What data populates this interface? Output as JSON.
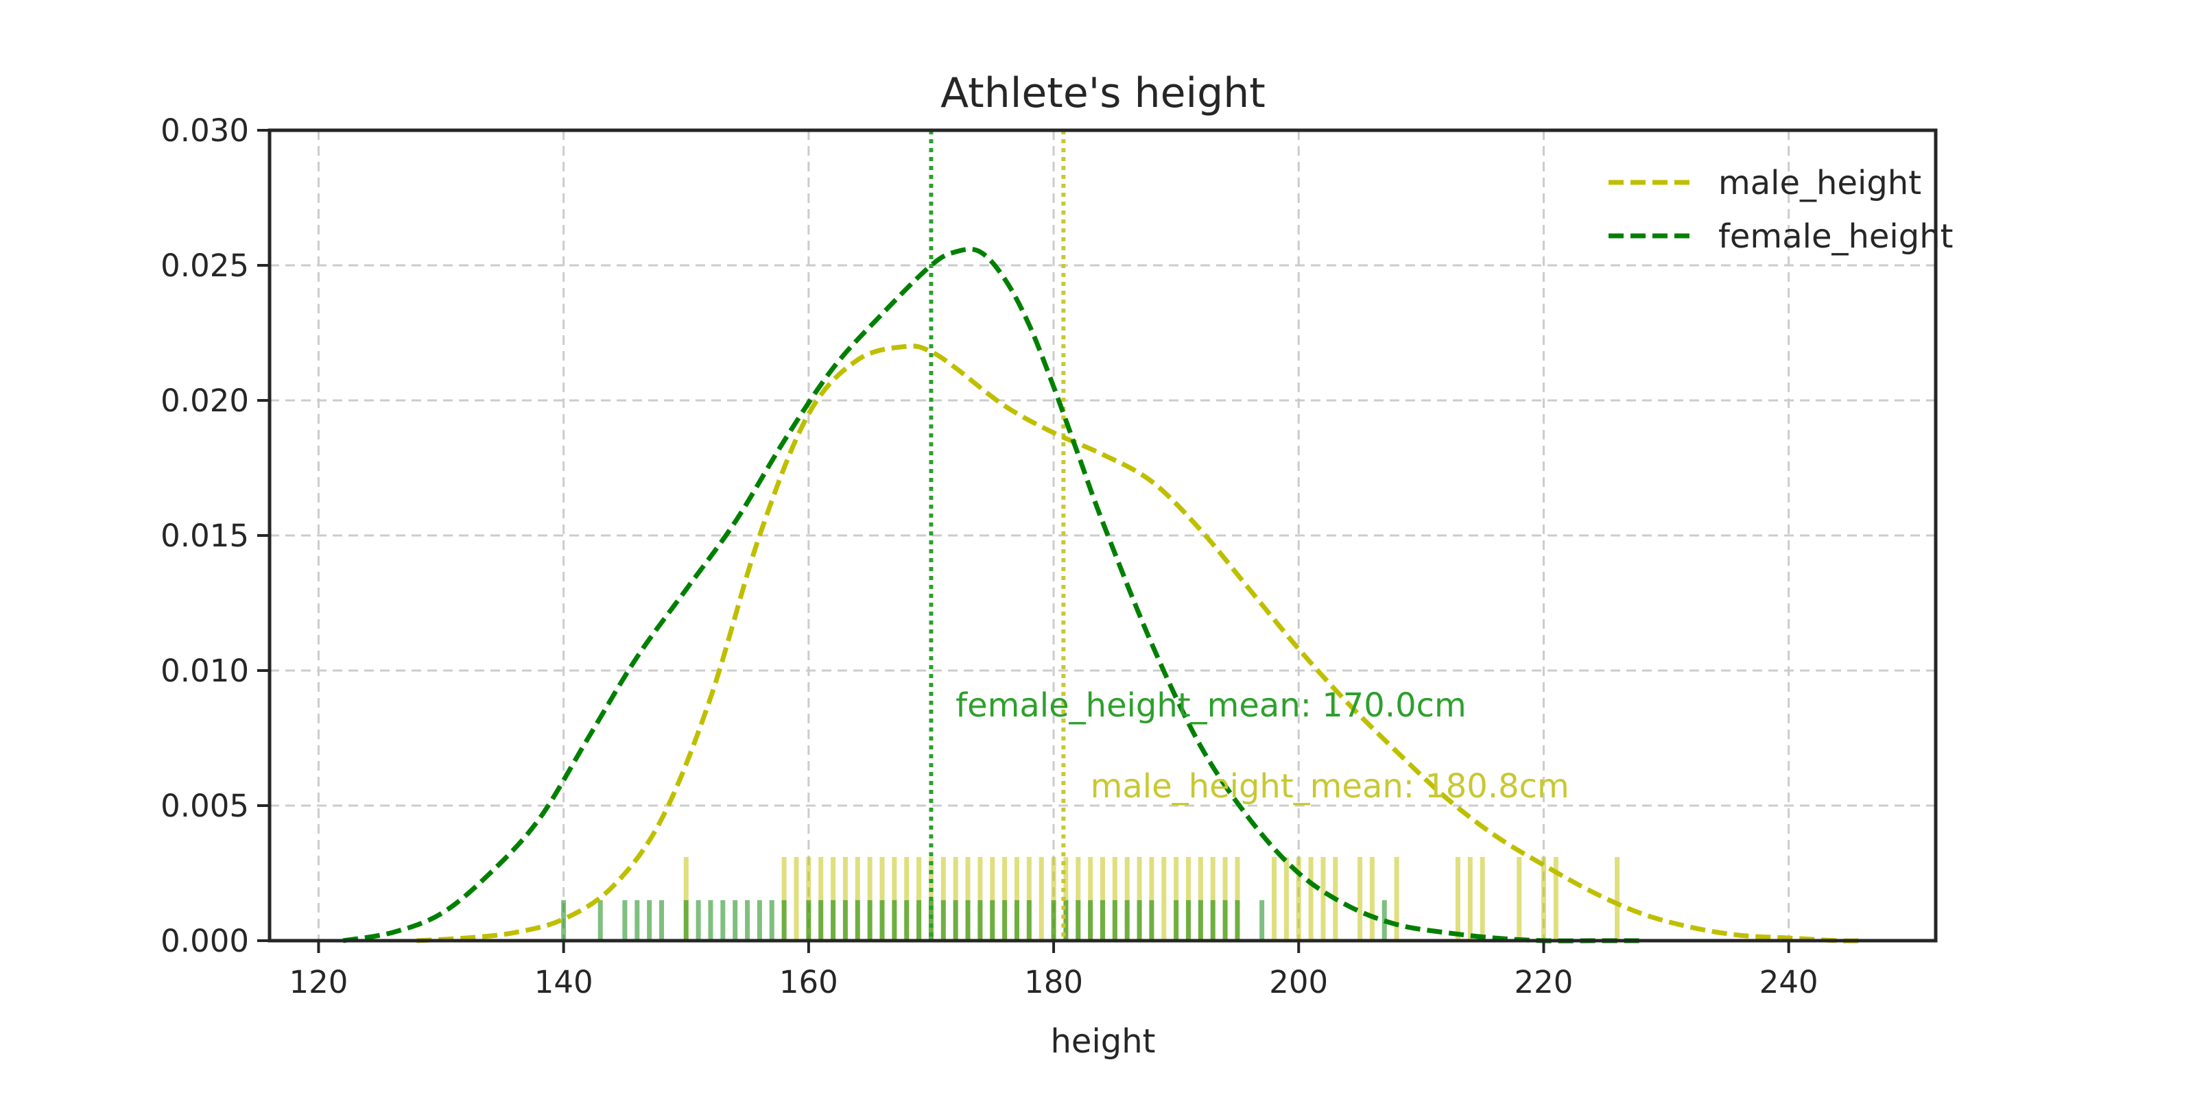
{
  "chart_data": {
    "type": "line",
    "title": "Athlete's height",
    "xlabel": "height",
    "ylabel": "",
    "xlim": [
      116,
      252
    ],
    "ylim": [
      0,
      0.03
    ],
    "x_ticks": [
      120,
      140,
      160,
      180,
      200,
      220,
      240
    ],
    "y_ticks": [
      0.0,
      0.005,
      0.01,
      0.015,
      0.02,
      0.025,
      0.03
    ],
    "y_tick_labels": [
      "0.000",
      "0.005",
      "0.010",
      "0.015",
      "0.020",
      "0.025",
      "0.030"
    ],
    "grid": true,
    "legend_position": "top-right",
    "series": [
      {
        "name": "male_height",
        "color": "#bfbf00",
        "style": "dashed",
        "x": [
          128,
          132,
          136,
          140,
          144,
          148,
          152,
          156,
          160,
          164,
          168,
          170,
          172,
          176,
          180,
          184,
          188,
          192,
          196,
          200,
          204,
          208,
          212,
          216,
          220,
          224,
          228,
          232,
          236,
          240,
          244,
          246
        ],
        "y": [
          0.0,
          0.0001,
          0.0003,
          0.0008,
          0.002,
          0.0045,
          0.009,
          0.015,
          0.0195,
          0.0215,
          0.022,
          0.0218,
          0.0212,
          0.0198,
          0.0188,
          0.018,
          0.017,
          0.0152,
          0.013,
          0.0108,
          0.0088,
          0.007,
          0.0053,
          0.0039,
          0.0028,
          0.0018,
          0.001,
          0.0005,
          0.0002,
          0.0001,
          0.0,
          0.0
        ]
      },
      {
        "name": "female_height",
        "color": "#008000",
        "style": "dashed",
        "x": [
          122,
          126,
          130,
          134,
          138,
          142,
          146,
          150,
          154,
          158,
          162,
          166,
          170,
          172,
          174,
          176,
          178,
          180,
          182,
          184,
          188,
          192,
          196,
          200,
          204,
          208,
          212,
          216,
          220,
          224,
          228
        ],
        "y": [
          0.0,
          0.0003,
          0.001,
          0.0025,
          0.0045,
          0.0075,
          0.0105,
          0.013,
          0.0155,
          0.0185,
          0.0212,
          0.0232,
          0.025,
          0.0255,
          0.0255,
          0.0245,
          0.0228,
          0.0205,
          0.018,
          0.0155,
          0.011,
          0.0072,
          0.0045,
          0.0025,
          0.0013,
          0.0006,
          0.0003,
          0.0001,
          0.0,
          0.0,
          0.0
        ]
      }
    ],
    "mean_lines": [
      {
        "name": "female_height_mean",
        "x": 170.0,
        "color": "#2ca02c",
        "label": "female_height_mean: 170.0cm",
        "label_x": 172,
        "label_y": 0.0083
      },
      {
        "name": "male_height_mean",
        "x": 180.8,
        "color": "#c8c832",
        "label": "male_height_mean: 180.8cm",
        "label_x": 183,
        "label_y": 0.0053
      }
    ],
    "rugs": [
      {
        "name": "male_height",
        "color": "#bfbf00",
        "height": 0.0031,
        "x": [
          150,
          158,
          159,
          160,
          161,
          162,
          163,
          164,
          165,
          166,
          167,
          168,
          169,
          170,
          171,
          172,
          173,
          174,
          175,
          176,
          177,
          178,
          179,
          180,
          181,
          182,
          183,
          184,
          185,
          186,
          187,
          188,
          189,
          190,
          191,
          192,
          193,
          194,
          195,
          198,
          199,
          200,
          201,
          202,
          203,
          205,
          206,
          208,
          213,
          214,
          215,
          218,
          220,
          221,
          226
        ]
      },
      {
        "name": "female_height",
        "color": "#008000",
        "height": 0.0015,
        "x": [
          140,
          143,
          145,
          146,
          147,
          148,
          150,
          151,
          152,
          153,
          154,
          155,
          156,
          157,
          158,
          160,
          161,
          162,
          163,
          164,
          165,
          166,
          167,
          168,
          169,
          170,
          171,
          172,
          173,
          174,
          175,
          176,
          177,
          178,
          180,
          181,
          182,
          183,
          184,
          185,
          186,
          187,
          188,
          190,
          191,
          192,
          193,
          194,
          195,
          197,
          207
        ]
      }
    ]
  }
}
